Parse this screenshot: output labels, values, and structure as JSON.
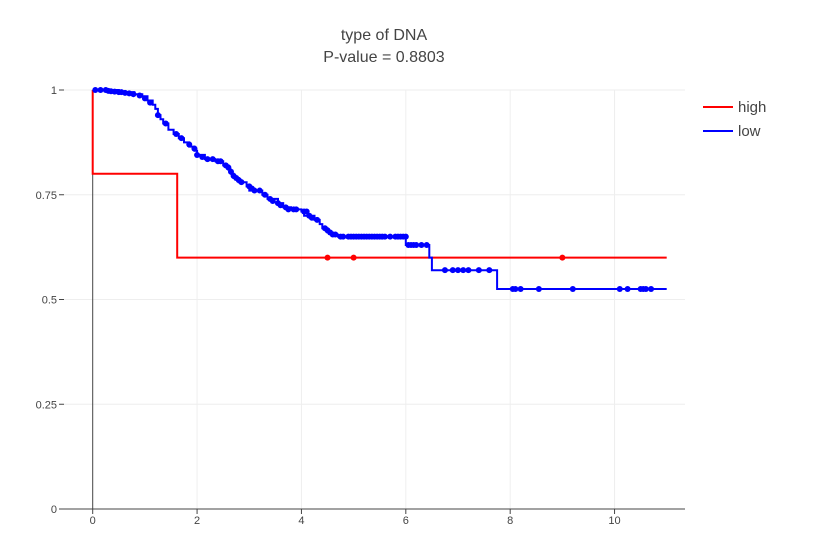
{
  "chart_data": {
    "type": "line",
    "title": "type of DNA",
    "subtitle": "P-value = 0.8803",
    "xlabel": "",
    "ylabel": "",
    "xlim": [
      -0.55,
      11.35
    ],
    "ylim": [
      0,
      1
    ],
    "x_ticks": [
      0,
      2,
      4,
      6,
      8,
      10
    ],
    "y_ticks": [
      0,
      0.25,
      0.5,
      0.75,
      1
    ],
    "y_tick_labels": [
      "0",
      "0.25",
      "0.5",
      "0.75",
      "1"
    ],
    "grid": true,
    "legend_position": "top-right",
    "series": [
      {
        "name": "high",
        "color": "#ff0000",
        "steps": [
          [
            0,
            1
          ],
          [
            0,
            0.8
          ],
          [
            1.62,
            0.8
          ],
          [
            1.62,
            0.6
          ],
          [
            11.0,
            0.6
          ]
        ],
        "censored": [
          [
            4.5,
            0.6
          ],
          [
            5.0,
            0.6
          ],
          [
            9.0,
            0.6
          ]
        ]
      },
      {
        "name": "low",
        "color": "#0000ff",
        "steps": [
          [
            0,
            1
          ],
          [
            0.5,
            0.995
          ],
          [
            0.8,
            0.99
          ],
          [
            0.95,
            0.985
          ],
          [
            1.05,
            0.975
          ],
          [
            1.15,
            0.965
          ],
          [
            1.2,
            0.955
          ],
          [
            1.25,
            0.94
          ],
          [
            1.3,
            0.93
          ],
          [
            1.35,
            0.92
          ],
          [
            1.45,
            0.905
          ],
          [
            1.55,
            0.895
          ],
          [
            1.65,
            0.885
          ],
          [
            1.75,
            0.875
          ],
          [
            1.85,
            0.865
          ],
          [
            1.95,
            0.855
          ],
          [
            2.0,
            0.845
          ],
          [
            2.15,
            0.835
          ],
          [
            2.35,
            0.83
          ],
          [
            2.5,
            0.82
          ],
          [
            2.6,
            0.81
          ],
          [
            2.65,
            0.8
          ],
          [
            2.7,
            0.79
          ],
          [
            2.8,
            0.78
          ],
          [
            2.95,
            0.77
          ],
          [
            3.0,
            0.76
          ],
          [
            3.25,
            0.75
          ],
          [
            3.35,
            0.74
          ],
          [
            3.55,
            0.73
          ],
          [
            3.65,
            0.72
          ],
          [
            3.8,
            0.715
          ],
          [
            4.0,
            0.71
          ],
          [
            4.05,
            0.7
          ],
          [
            4.25,
            0.69
          ],
          [
            4.35,
            0.68
          ],
          [
            4.4,
            0.67
          ],
          [
            4.5,
            0.66
          ],
          [
            4.6,
            0.655
          ],
          [
            4.7,
            0.65
          ],
          [
            6.0,
            0.63
          ],
          [
            6.45,
            0.6
          ],
          [
            6.5,
            0.57
          ],
          [
            7.75,
            0.525
          ],
          [
            11.0,
            0.525
          ]
        ],
        "censored": [
          [
            0.05,
            1
          ],
          [
            0.15,
            1
          ],
          [
            0.25,
            1
          ],
          [
            0.3,
            0.998
          ],
          [
            0.35,
            0.997
          ],
          [
            0.42,
            0.996
          ],
          [
            0.5,
            0.995
          ],
          [
            0.55,
            0.995
          ],
          [
            0.62,
            0.993
          ],
          [
            0.7,
            0.992
          ],
          [
            0.78,
            0.99
          ],
          [
            0.9,
            0.987
          ],
          [
            1.0,
            0.98
          ],
          [
            1.1,
            0.97
          ],
          [
            1.25,
            0.94
          ],
          [
            1.4,
            0.92
          ],
          [
            1.6,
            0.895
          ],
          [
            1.7,
            0.885
          ],
          [
            1.85,
            0.87
          ],
          [
            1.95,
            0.86
          ],
          [
            2.0,
            0.845
          ],
          [
            2.1,
            0.84
          ],
          [
            2.2,
            0.835
          ],
          [
            2.3,
            0.835
          ],
          [
            2.4,
            0.83
          ],
          [
            2.45,
            0.83
          ],
          [
            2.55,
            0.82
          ],
          [
            2.6,
            0.815
          ],
          [
            2.65,
            0.805
          ],
          [
            2.7,
            0.795
          ],
          [
            2.75,
            0.79
          ],
          [
            2.8,
            0.785
          ],
          [
            2.85,
            0.78
          ],
          [
            3.0,
            0.77
          ],
          [
            3.05,
            0.765
          ],
          [
            3.1,
            0.76
          ],
          [
            3.2,
            0.76
          ],
          [
            3.3,
            0.75
          ],
          [
            3.4,
            0.74
          ],
          [
            3.45,
            0.735
          ],
          [
            3.55,
            0.73
          ],
          [
            3.6,
            0.725
          ],
          [
            3.7,
            0.72
          ],
          [
            3.75,
            0.715
          ],
          [
            3.85,
            0.715
          ],
          [
            3.9,
            0.715
          ],
          [
            4.05,
            0.71
          ],
          [
            4.1,
            0.71
          ],
          [
            4.15,
            0.7
          ],
          [
            4.2,
            0.695
          ],
          [
            4.3,
            0.69
          ],
          [
            4.45,
            0.67
          ],
          [
            4.5,
            0.665
          ],
          [
            4.55,
            0.66
          ],
          [
            4.6,
            0.655
          ],
          [
            4.65,
            0.655
          ],
          [
            4.75,
            0.65
          ],
          [
            4.8,
            0.65
          ],
          [
            4.9,
            0.65
          ],
          [
            4.95,
            0.65
          ],
          [
            5.0,
            0.65
          ],
          [
            5.05,
            0.65
          ],
          [
            5.1,
            0.65
          ],
          [
            5.15,
            0.65
          ],
          [
            5.2,
            0.65
          ],
          [
            5.25,
            0.65
          ],
          [
            5.3,
            0.65
          ],
          [
            5.35,
            0.65
          ],
          [
            5.4,
            0.65
          ],
          [
            5.45,
            0.65
          ],
          [
            5.5,
            0.65
          ],
          [
            5.55,
            0.65
          ],
          [
            5.6,
            0.65
          ],
          [
            5.7,
            0.65
          ],
          [
            5.8,
            0.65
          ],
          [
            5.85,
            0.65
          ],
          [
            5.9,
            0.65
          ],
          [
            5.95,
            0.65
          ],
          [
            6.0,
            0.65
          ],
          [
            6.05,
            0.63
          ],
          [
            6.1,
            0.63
          ],
          [
            6.15,
            0.63
          ],
          [
            6.2,
            0.63
          ],
          [
            6.3,
            0.63
          ],
          [
            6.4,
            0.63
          ],
          [
            6.75,
            0.57
          ],
          [
            6.9,
            0.57
          ],
          [
            7.0,
            0.57
          ],
          [
            7.1,
            0.57
          ],
          [
            7.2,
            0.57
          ],
          [
            7.4,
            0.57
          ],
          [
            7.6,
            0.57
          ],
          [
            8.05,
            0.525
          ],
          [
            8.1,
            0.525
          ],
          [
            8.2,
            0.525
          ],
          [
            8.55,
            0.525
          ],
          [
            9.2,
            0.525
          ],
          [
            10.1,
            0.525
          ],
          [
            10.25,
            0.525
          ],
          [
            10.5,
            0.525
          ],
          [
            10.55,
            0.525
          ],
          [
            10.6,
            0.525
          ],
          [
            10.7,
            0.525
          ]
        ]
      }
    ]
  }
}
